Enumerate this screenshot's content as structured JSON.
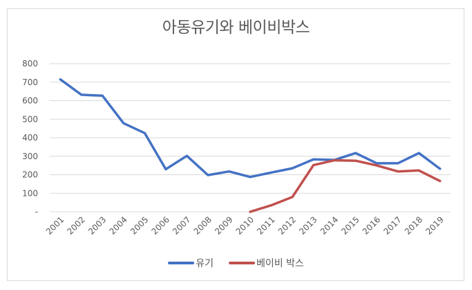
{
  "chart_data": {
    "type": "line",
    "title": "아동유기와 베이비박스",
    "xlabel": "",
    "ylabel": "",
    "ylim": [
      0,
      800
    ],
    "yticks": [
      "-",
      "100",
      "200",
      "300",
      "400",
      "500",
      "600",
      "700",
      "800"
    ],
    "grid": true,
    "legend_position": "bottom",
    "categories": [
      "2001",
      "2002",
      "2003",
      "2004",
      "2005",
      "2006",
      "2007",
      "2008",
      "2009",
      "2010",
      "2011",
      "2012",
      "2013",
      "2014",
      "2015",
      "2016",
      "2017",
      "2018",
      "2019"
    ],
    "series": [
      {
        "name": "유기",
        "color": "#4472c4",
        "values": [
          715,
          632,
          627,
          478,
          425,
          230,
          302,
          198,
          218,
          188,
          212,
          235,
          283,
          280,
          317,
          262,
          262,
          317,
          232
        ]
      },
      {
        "name": "베이비 박스",
        "color": "#c0504d",
        "values": [
          null,
          null,
          null,
          null,
          null,
          null,
          null,
          null,
          null,
          0,
          35,
          80,
          252,
          278,
          276,
          250,
          218,
          223,
          166
        ]
      }
    ]
  }
}
